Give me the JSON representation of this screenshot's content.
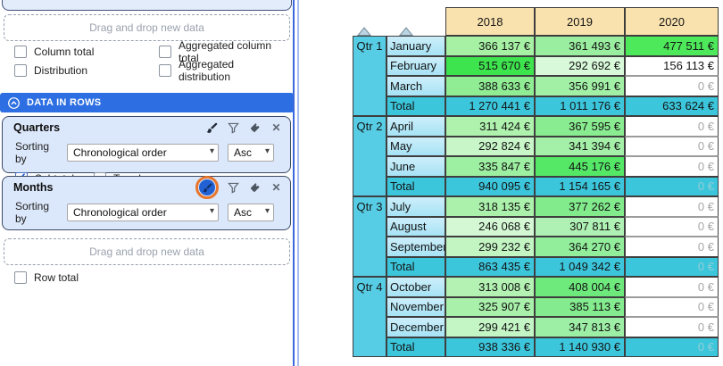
{
  "left_panel": {
    "drop_zones": [
      "Drag and drop new data",
      "Drag and drop new data"
    ],
    "top_checkboxes": [
      {
        "label": "Column total",
        "checked": false
      },
      {
        "label": "Aggregated column total",
        "checked": false
      },
      {
        "label": "Distribution",
        "checked": false
      },
      {
        "label": "Aggregated distribution",
        "checked": false
      }
    ],
    "section_header": "DATA IN ROWS",
    "field_icon_names": [
      "paintbrush-icon",
      "filter-icon",
      "tag-icon",
      "close-icon"
    ],
    "section_icon_name": "collapse-chevron-up-icon",
    "fields": [
      {
        "title": "Quarters",
        "sorting_label": "Sorting by",
        "sort_value": "Chronological order",
        "direction_value": "Asc",
        "checkboxes": [
          {
            "label": "Subtotal",
            "checked": true
          },
          {
            "label": "Trends",
            "checked": false
          }
        ]
      },
      {
        "title": "Months",
        "sorting_label": "Sorting by",
        "sort_value": "Chronological order",
        "direction_value": "Asc",
        "highlighted_icon": "paintbrush-icon",
        "highlight_annotation": "orange-circle"
      }
    ],
    "row_total": {
      "label": "Row total",
      "checked": false
    }
  },
  "colors": {
    "accent_blue": "#2d6fe2",
    "card_bg": "#dbe7fa",
    "year_header_bg": "#f9e2ae",
    "quarter_cell_bg": "#56cde4",
    "total_row_bg": "#3cc6dc",
    "highlight_ring": "#e8762b",
    "highlight_dot": "#2161d3",
    "heatmap_max_green": "#3ee44e"
  },
  "table": {
    "sort_indicator_names": [
      "sort-ascending-quarter",
      "sort-ascending-month"
    ],
    "years": [
      "2018",
      "2019",
      "2020"
    ],
    "quarters": [
      {
        "label": "Qtr 1",
        "months": [
          {
            "label": "January",
            "cells": [
              {
                "v": "366 137 €",
                "bg": "#a6f1a4"
              },
              {
                "v": "361 493 €",
                "bg": "#9aeea0"
              },
              {
                "v": "477 511 €",
                "bg": "#4ee85b"
              }
            ]
          },
          {
            "label": "February",
            "cells": [
              {
                "v": "515 670 €",
                "bg": "#3ee44e"
              },
              {
                "v": "292 692 €",
                "bg": "#d8f9da"
              },
              {
                "v": "156 113 €",
                "bg": "#ffffff"
              }
            ]
          },
          {
            "label": "March",
            "cells": [
              {
                "v": "388 633 €",
                "bg": "#90ed94"
              },
              {
                "v": "356 991 €",
                "bg": "#a2f0a6"
              },
              {
                "v": "0 €",
                "bg": "#ffffff",
                "muted": true
              }
            ]
          }
        ],
        "total": {
          "label": "Total",
          "cells": [
            {
              "v": "1 270 441 €"
            },
            {
              "v": "1 011 176 €"
            },
            {
              "v": "633 624 €"
            }
          ]
        }
      },
      {
        "label": "Qtr 2",
        "months": [
          {
            "label": "April",
            "cells": [
              {
                "v": "311 424 €",
                "bg": "#aef2ae"
              },
              {
                "v": "367 595 €",
                "bg": "#89ec90"
              },
              {
                "v": "0 €",
                "bg": "#ffffff",
                "muted": true
              }
            ]
          },
          {
            "label": "May",
            "cells": [
              {
                "v": "292 824 €",
                "bg": "#c9f6c9"
              },
              {
                "v": "341 394 €",
                "bg": "#a4f0a8"
              },
              {
                "v": "0 €",
                "bg": "#ffffff",
                "muted": true
              }
            ]
          },
          {
            "label": "June",
            "cells": [
              {
                "v": "335 847 €",
                "bg": "#9defa1"
              },
              {
                "v": "445 176 €",
                "bg": "#55e867"
              },
              {
                "v": "0 €",
                "bg": "#ffffff",
                "muted": true
              }
            ]
          }
        ],
        "total": {
          "label": "Total",
          "cells": [
            {
              "v": "940 095 €"
            },
            {
              "v": "1 154 165 €"
            },
            {
              "v": "0 €",
              "muted": true
            }
          ]
        }
      },
      {
        "label": "Qtr 3",
        "months": [
          {
            "label": "July",
            "cells": [
              {
                "v": "318 135 €",
                "bg": "#abf1ab"
              },
              {
                "v": "377 262 €",
                "bg": "#82eb8c"
              },
              {
                "v": "0 €",
                "bg": "#ffffff",
                "muted": true
              }
            ]
          },
          {
            "label": "August",
            "cells": [
              {
                "v": "246 068 €",
                "bg": "#d4f8d4"
              },
              {
                "v": "307 811 €",
                "bg": "#aff1b4"
              },
              {
                "v": "0 €",
                "bg": "#ffffff",
                "muted": true
              }
            ]
          },
          {
            "label": "September",
            "cells": [
              {
                "v": "299 232 €",
                "bg": "#c3f5c3"
              },
              {
                "v": "364 270 €",
                "bg": "#92ee9b"
              },
              {
                "v": "0 €",
                "bg": "#ffffff",
                "muted": true
              }
            ]
          }
        ],
        "total": {
          "label": "Total",
          "cells": [
            {
              "v": "863 435 €"
            },
            {
              "v": "1 049 342 €"
            },
            {
              "v": "0 €",
              "muted": true
            }
          ]
        }
      },
      {
        "label": "Qtr 4",
        "months": [
          {
            "label": "October",
            "cells": [
              {
                "v": "313 008 €",
                "bg": "#b3f2b2"
              },
              {
                "v": "408 004 €",
                "bg": "#6eea7d"
              },
              {
                "v": "0 €",
                "bg": "#ffffff",
                "muted": true
              }
            ]
          },
          {
            "label": "November",
            "cells": [
              {
                "v": "325 907 €",
                "bg": "#a9f1aa"
              },
              {
                "v": "385 113 €",
                "bg": "#84eb8e"
              },
              {
                "v": "0 €",
                "bg": "#ffffff",
                "muted": true
              }
            ]
          },
          {
            "label": "December",
            "cells": [
              {
                "v": "299 421 €",
                "bg": "#c4f5c5"
              },
              {
                "v": "347 813 €",
                "bg": "#9defa5"
              },
              {
                "v": "0 €",
                "bg": "#ffffff",
                "muted": true
              }
            ]
          }
        ],
        "total": {
          "label": "Total",
          "cells": [
            {
              "v": "938 336 €"
            },
            {
              "v": "1 140 930 €"
            },
            {
              "v": "0 €",
              "muted": true
            }
          ]
        }
      }
    ]
  }
}
